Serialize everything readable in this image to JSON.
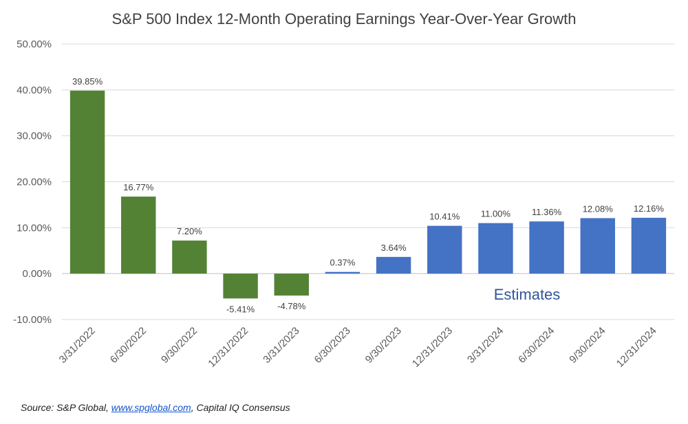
{
  "chart_data": {
    "type": "bar",
    "title": "S&P 500 Index 12-Month Operating Earnings Year-Over-Year Growth",
    "categories": [
      "3/31/2022",
      "6/30/2022",
      "9/30/2022",
      "12/31/2022",
      "3/31/2023",
      "6/30/2023",
      "9/30/2023",
      "12/31/2023",
      "3/31/2024",
      "6/30/2024",
      "9/30/2024",
      "12/31/2024"
    ],
    "values": [
      39.85,
      16.77,
      7.2,
      -5.41,
      -4.78,
      0.37,
      3.64,
      10.41,
      11.0,
      11.36,
      12.08,
      12.16
    ],
    "data_labels": [
      "39.85%",
      "16.77%",
      "7.20%",
      "-5.41%",
      "-4.78%",
      "0.37%",
      "3.64%",
      "10.41%",
      "11.00%",
      "11.36%",
      "12.08%",
      "12.16%"
    ],
    "bar_colors": [
      "#548235",
      "#548235",
      "#548235",
      "#548235",
      "#548235",
      "#4472c4",
      "#4472c4",
      "#4472c4",
      "#4472c4",
      "#4472c4",
      "#4472c4",
      "#4472c4"
    ],
    "ylim": [
      -10,
      50
    ],
    "yticks": [
      -10,
      0,
      10,
      20,
      30,
      40,
      50
    ],
    "ytick_labels": [
      "-10.00%",
      "0.00%",
      "10.00%",
      "20.00%",
      "30.00%",
      "40.00%",
      "50.00%"
    ],
    "grid": true,
    "annotation": "Estimates",
    "annotation_color": "#2f5597"
  },
  "source": {
    "prefix": "Source: S&P Global, ",
    "link": "www.spglobal.com",
    "suffix": ", Capital IQ Consensus"
  }
}
